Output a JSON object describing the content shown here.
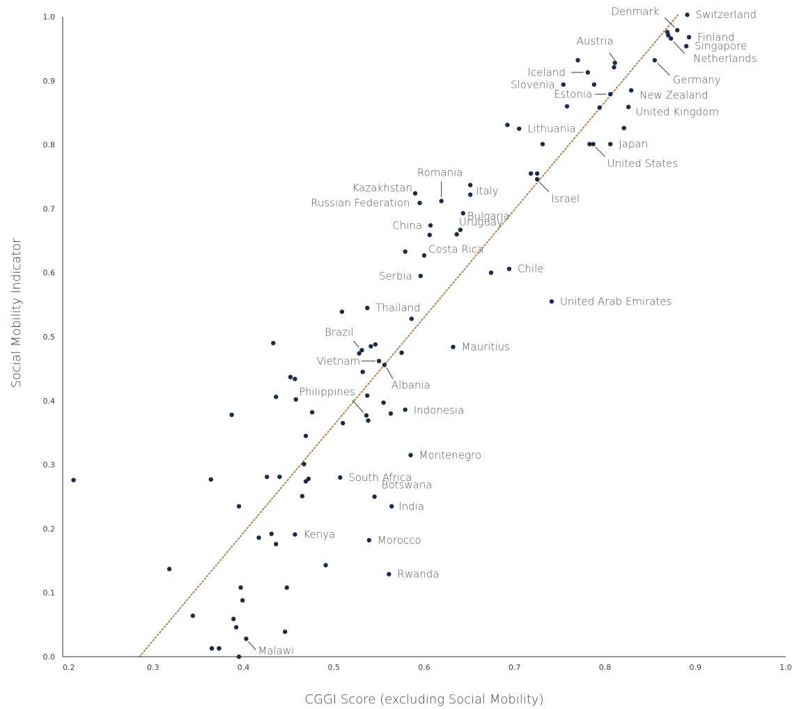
{
  "chart_data": {
    "type": "scatter",
    "title": "",
    "xlabel": "CGGI Score (excluding Social Mobility)",
    "ylabel": "Social Mobility Indicator",
    "xlim": [
      0.2,
      1.0
    ],
    "ylim": [
      0.0,
      1.0
    ],
    "x_ticks": [
      "0.2",
      "0.3",
      "0.4",
      "0.5",
      "0.6",
      "0.7",
      "0.8",
      "0.9",
      "1.0"
    ],
    "y_ticks": [
      "0.0",
      "0.1",
      "0.2",
      "0.3",
      "0.4",
      "0.5",
      "0.6",
      "0.7",
      "0.8",
      "0.9",
      "1.0"
    ],
    "grid": false,
    "legend": "none",
    "colors": {
      "point": "#1a2a4a",
      "trend": "#a8763e",
      "axis": "#333333",
      "text": "#555555"
    },
    "trendline": {
      "style": "dotted",
      "points": [
        [
          0.285,
          0.0
        ],
        [
          0.882,
          1.005
        ]
      ]
    },
    "points": [
      [
        0.891,
        1.003
      ],
      [
        0.88,
        0.979
      ],
      [
        0.869,
        0.976
      ],
      [
        0.87,
        0.971
      ],
      [
        0.893,
        0.968
      ],
      [
        0.873,
        0.966
      ],
      [
        0.89,
        0.954
      ],
      [
        0.855,
        0.932
      ],
      [
        0.77,
        0.932
      ],
      [
        0.811,
        0.928
      ],
      [
        0.81,
        0.921
      ],
      [
        0.781,
        0.913
      ],
      [
        0.788,
        0.894
      ],
      [
        0.754,
        0.894
      ],
      [
        0.829,
        0.885
      ],
      [
        0.806,
        0.879
      ],
      [
        0.758,
        0.86
      ],
      [
        0.794,
        0.858
      ],
      [
        0.826,
        0.859
      ],
      [
        0.821,
        0.826
      ],
      [
        0.692,
        0.831
      ],
      [
        0.705,
        0.825
      ],
      [
        0.731,
        0.801
      ],
      [
        0.783,
        0.801
      ],
      [
        0.787,
        0.801
      ],
      [
        0.806,
        0.801
      ],
      [
        0.718,
        0.755
      ],
      [
        0.725,
        0.755
      ],
      [
        0.725,
        0.746
      ],
      [
        0.651,
        0.737
      ],
      [
        0.651,
        0.722
      ],
      [
        0.59,
        0.724
      ],
      [
        0.619,
        0.712
      ],
      [
        0.595,
        0.709
      ],
      [
        0.643,
        0.693
      ],
      [
        0.607,
        0.674
      ],
      [
        0.64,
        0.667
      ],
      [
        0.636,
        0.66
      ],
      [
        0.606,
        0.659
      ],
      [
        0.579,
        0.633
      ],
      [
        0.6,
        0.627
      ],
      [
        0.674,
        0.6
      ],
      [
        0.694,
        0.606
      ],
      [
        0.596,
        0.595
      ],
      [
        0.741,
        0.555
      ],
      [
        0.509,
        0.539
      ],
      [
        0.537,
        0.545
      ],
      [
        0.586,
        0.528
      ],
      [
        0.433,
        0.49
      ],
      [
        0.546,
        0.488
      ],
      [
        0.541,
        0.485
      ],
      [
        0.632,
        0.484
      ],
      [
        0.531,
        0.479
      ],
      [
        0.528,
        0.474
      ],
      [
        0.575,
        0.475
      ],
      [
        0.55,
        0.462
      ],
      [
        0.556,
        0.456
      ],
      [
        0.532,
        0.445
      ],
      [
        0.452,
        0.437
      ],
      [
        0.457,
        0.434
      ],
      [
        0.537,
        0.408
      ],
      [
        0.436,
        0.406
      ],
      [
        0.458,
        0.402
      ],
      [
        0.555,
        0.397
      ],
      [
        0.579,
        0.386
      ],
      [
        0.476,
        0.382
      ],
      [
        0.563,
        0.38
      ],
      [
        0.536,
        0.377
      ],
      [
        0.387,
        0.378
      ],
      [
        0.538,
        0.369
      ],
      [
        0.51,
        0.365
      ],
      [
        0.469,
        0.345
      ],
      [
        0.585,
        0.315
      ],
      [
        0.467,
        0.301
      ],
      [
        0.426,
        0.281
      ],
      [
        0.44,
        0.281
      ],
      [
        0.472,
        0.278
      ],
      [
        0.469,
        0.274
      ],
      [
        0.507,
        0.28
      ],
      [
        0.212,
        0.276
      ],
      [
        0.364,
        0.277
      ],
      [
        0.465,
        0.251
      ],
      [
        0.545,
        0.25
      ],
      [
        0.395,
        0.235
      ],
      [
        0.564,
        0.235
      ],
      [
        0.431,
        0.192
      ],
      [
        0.457,
        0.191
      ],
      [
        0.417,
        0.186
      ],
      [
        0.539,
        0.182
      ],
      [
        0.436,
        0.176
      ],
      [
        0.491,
        0.143
      ],
      [
        0.318,
        0.137
      ],
      [
        0.561,
        0.129
      ],
      [
        0.397,
        0.108
      ],
      [
        0.448,
        0.108
      ],
      [
        0.399,
        0.088
      ],
      [
        0.344,
        0.064
      ],
      [
        0.389,
        0.059
      ],
      [
        0.392,
        0.046
      ],
      [
        0.446,
        0.039
      ],
      [
        0.403,
        0.028
      ],
      [
        0.365,
        0.013
      ],
      [
        0.373,
        0.013
      ],
      [
        0.395,
        0.0
      ]
    ],
    "labels": [
      {
        "text": "Switzerland",
        "x": 0.891,
        "y": 1.003
      },
      {
        "text": "Denmark",
        "x": 0.88,
        "y": 0.979
      },
      {
        "text": "Finland",
        "x": 0.893,
        "y": 0.968
      },
      {
        "text": "Singapore",
        "x": 0.89,
        "y": 0.954
      },
      {
        "text": "Netherlands",
        "x": 0.873,
        "y": 0.966
      },
      {
        "text": "Austria",
        "x": 0.811,
        "y": 0.928
      },
      {
        "text": "Germany",
        "x": 0.855,
        "y": 0.932
      },
      {
        "text": "Iceland",
        "x": 0.781,
        "y": 0.913
      },
      {
        "text": "Slovenia",
        "x": 0.754,
        "y": 0.894
      },
      {
        "text": "Estonia",
        "x": 0.806,
        "y": 0.879
      },
      {
        "text": "New Zealand",
        "x": 0.829,
        "y": 0.885
      },
      {
        "text": "United Kingdom",
        "x": 0.826,
        "y": 0.859
      },
      {
        "text": "Lithuania",
        "x": 0.705,
        "y": 0.825
      },
      {
        "text": "Japan",
        "x": 0.806,
        "y": 0.801
      },
      {
        "text": "United States",
        "x": 0.787,
        "y": 0.801
      },
      {
        "text": "Israel",
        "x": 0.725,
        "y": 0.746
      },
      {
        "text": "Romania",
        "x": 0.619,
        "y": 0.712
      },
      {
        "text": "Kazakhstan",
        "x": 0.59,
        "y": 0.724
      },
      {
        "text": "Russian Federation",
        "x": 0.595,
        "y": 0.709
      },
      {
        "text": "Italy",
        "x": 0.651,
        "y": 0.722
      },
      {
        "text": "Bulgaria",
        "x": 0.643,
        "y": 0.693
      },
      {
        "text": "China",
        "x": 0.607,
        "y": 0.674
      },
      {
        "text": "Uruguay",
        "x": 0.64,
        "y": 0.667
      },
      {
        "text": "Costa Rica",
        "x": 0.6,
        "y": 0.627
      },
      {
        "text": "Chile",
        "x": 0.694,
        "y": 0.606
      },
      {
        "text": "Serbia",
        "x": 0.596,
        "y": 0.595
      },
      {
        "text": "United Arab Emirates",
        "x": 0.741,
        "y": 0.555
      },
      {
        "text": "Thailand",
        "x": 0.537,
        "y": 0.545
      },
      {
        "text": "Brazil",
        "x": 0.531,
        "y": 0.479
      },
      {
        "text": "Mauritius",
        "x": 0.632,
        "y": 0.484
      },
      {
        "text": "Vietnam",
        "x": 0.55,
        "y": 0.462
      },
      {
        "text": "Albania",
        "x": 0.556,
        "y": 0.456
      },
      {
        "text": "Philippines",
        "x": 0.536,
        "y": 0.377
      },
      {
        "text": "Indonesia",
        "x": 0.579,
        "y": 0.386
      },
      {
        "text": "Montenegro",
        "x": 0.585,
        "y": 0.315
      },
      {
        "text": "South Africa",
        "x": 0.507,
        "y": 0.28
      },
      {
        "text": "Botswana",
        "x": 0.545,
        "y": 0.25
      },
      {
        "text": "India",
        "x": 0.564,
        "y": 0.235
      },
      {
        "text": "Kenya",
        "x": 0.457,
        "y": 0.191
      },
      {
        "text": "Morocco",
        "x": 0.539,
        "y": 0.182
      },
      {
        "text": "Rwanda",
        "x": 0.561,
        "y": 0.129
      },
      {
        "text": "Malawi",
        "x": 0.403,
        "y": 0.028
      }
    ]
  }
}
